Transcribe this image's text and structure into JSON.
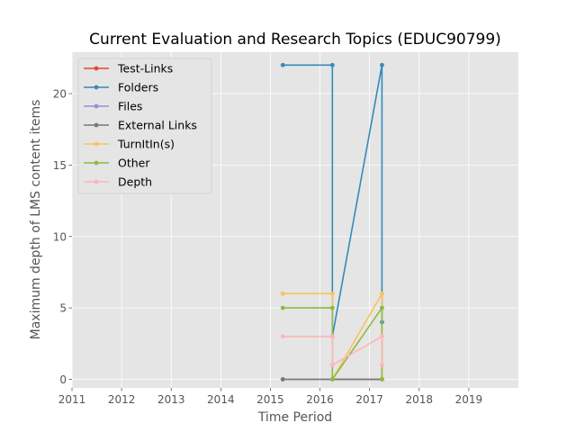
{
  "chart_data": {
    "type": "line",
    "title": "Current Evaluation and Research Topics (EDUC90799)",
    "xlabel": "Time Period",
    "ylabel": "Maximum depth of LMS content items",
    "xlim": [
      2011,
      2020
    ],
    "ylim": [
      -0.6,
      22.9
    ],
    "x_ticks": [
      "2011",
      "2012",
      "2013",
      "2014",
      "2015",
      "2016",
      "2017",
      "2018",
      "2019"
    ],
    "y_ticks": [
      "0",
      "5",
      "10",
      "15",
      "20"
    ],
    "grid": true,
    "legend_position": "top-left",
    "series": [
      {
        "name": "Test-Links",
        "color": "#E24A33",
        "points": [
          [
            2016.25,
            0
          ],
          [
            2017.25,
            0
          ]
        ]
      },
      {
        "name": "Folders",
        "color": "#348ABD",
        "points": [
          [
            2015.25,
            22
          ],
          [
            2016.25,
            22
          ],
          [
            2016.25,
            3
          ],
          [
            2017.25,
            22
          ],
          [
            2017.25,
            4
          ]
        ]
      },
      {
        "name": "Files",
        "color": "#988ED5",
        "points": [
          [
            2015.25,
            0
          ],
          [
            2016.25,
            0
          ],
          [
            2017.25,
            0
          ]
        ]
      },
      {
        "name": "External Links",
        "color": "#777777",
        "points": [
          [
            2015.25,
            0
          ],
          [
            2016.25,
            0
          ],
          [
            2017.25,
            0
          ]
        ]
      },
      {
        "name": "TurnItIn(s)",
        "color": "#FBC15E",
        "points": [
          [
            2015.25,
            6
          ],
          [
            2016.25,
            6
          ],
          [
            2016.25,
            0
          ],
          [
            2017.25,
            6
          ],
          [
            2017.25,
            0
          ]
        ]
      },
      {
        "name": "Other",
        "color": "#8EBA42",
        "points": [
          [
            2015.25,
            5
          ],
          [
            2016.25,
            5
          ],
          [
            2016.25,
            0
          ],
          [
            2017.25,
            5
          ],
          [
            2017.25,
            0
          ]
        ]
      },
      {
        "name": "Depth",
        "color": "#FFB5B8",
        "points": [
          [
            2015.25,
            3
          ],
          [
            2016.25,
            3
          ],
          [
            2016.25,
            1
          ],
          [
            2017.25,
            3
          ],
          [
            2017.25,
            1
          ]
        ]
      }
    ]
  }
}
